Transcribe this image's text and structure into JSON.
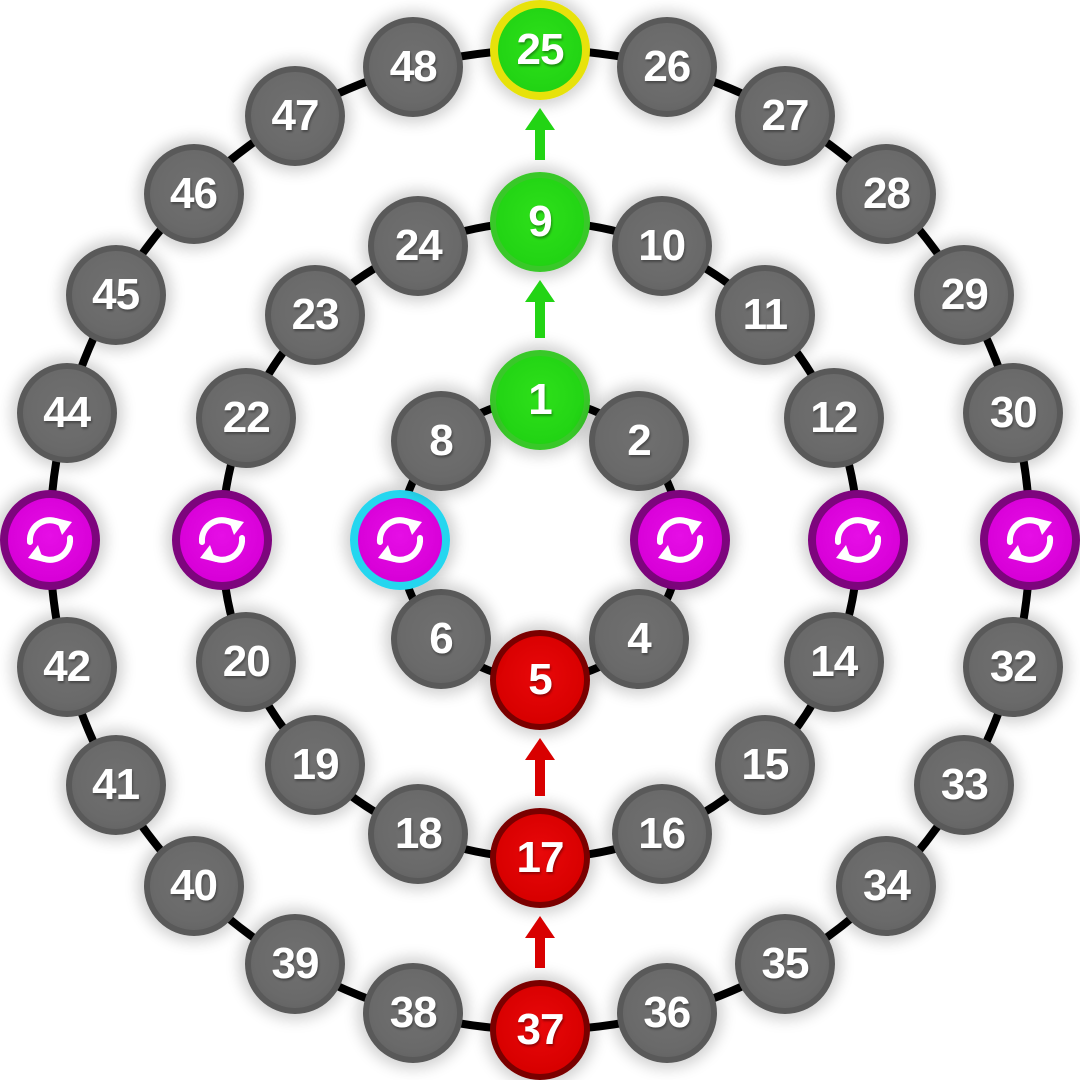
{
  "colors": {
    "gray": "#6a6a6a",
    "green": "#22d414",
    "red": "#d80000",
    "purple": "#d800d8",
    "highlight_yellow": "#e7e20b",
    "highlight_cyan": "#25d6ef",
    "line": "#000000"
  },
  "rings": {
    "inner": [
      {
        "id": "n1",
        "label": "1",
        "color": "green"
      },
      {
        "id": "n2",
        "label": "2",
        "color": "gray"
      },
      {
        "id": "n3",
        "label": "",
        "color": "purple",
        "icon": "refresh-icon"
      },
      {
        "id": "n4",
        "label": "4",
        "color": "gray"
      },
      {
        "id": "n5",
        "label": "5",
        "color": "red"
      },
      {
        "id": "n6",
        "label": "6",
        "color": "gray"
      },
      {
        "id": "n7",
        "label": "",
        "color": "purple",
        "icon": "refresh-icon",
        "highlight": "cyan"
      },
      {
        "id": "n8",
        "label": "8",
        "color": "gray"
      }
    ],
    "middle": [
      {
        "id": "n9",
        "label": "9",
        "color": "green"
      },
      {
        "id": "n10",
        "label": "10",
        "color": "gray"
      },
      {
        "id": "n11",
        "label": "11",
        "color": "gray"
      },
      {
        "id": "n12",
        "label": "12",
        "color": "gray"
      },
      {
        "id": "n13",
        "label": "",
        "color": "purple",
        "icon": "refresh-icon"
      },
      {
        "id": "n14",
        "label": "14",
        "color": "gray"
      },
      {
        "id": "n15",
        "label": "15",
        "color": "gray"
      },
      {
        "id": "n16",
        "label": "16",
        "color": "gray"
      },
      {
        "id": "n17",
        "label": "17",
        "color": "red"
      },
      {
        "id": "n18",
        "label": "18",
        "color": "gray"
      },
      {
        "id": "n19",
        "label": "19",
        "color": "gray"
      },
      {
        "id": "n20",
        "label": "20",
        "color": "gray"
      },
      {
        "id": "n21",
        "label": "",
        "color": "purple",
        "icon": "refresh-icon"
      },
      {
        "id": "n22",
        "label": "22",
        "color": "gray"
      },
      {
        "id": "n23",
        "label": "23",
        "color": "gray"
      },
      {
        "id": "n24",
        "label": "24",
        "color": "gray"
      }
    ],
    "outer": [
      {
        "id": "n25",
        "label": "25",
        "color": "green",
        "highlight": "yellow"
      },
      {
        "id": "n26",
        "label": "26",
        "color": "gray"
      },
      {
        "id": "n27",
        "label": "27",
        "color": "gray"
      },
      {
        "id": "n28",
        "label": "28",
        "color": "gray"
      },
      {
        "id": "n29",
        "label": "29",
        "color": "gray"
      },
      {
        "id": "n30",
        "label": "30",
        "color": "gray"
      },
      {
        "id": "n31",
        "label": "",
        "color": "purple",
        "icon": "refresh-icon"
      },
      {
        "id": "n32",
        "label": "32",
        "color": "gray"
      },
      {
        "id": "n33",
        "label": "33",
        "color": "gray"
      },
      {
        "id": "n34",
        "label": "34",
        "color": "gray"
      },
      {
        "id": "n35",
        "label": "35",
        "color": "gray"
      },
      {
        "id": "n36",
        "label": "36",
        "color": "gray"
      },
      {
        "id": "n37",
        "label": "37",
        "color": "red"
      },
      {
        "id": "n38",
        "label": "38",
        "color": "gray"
      },
      {
        "id": "n39",
        "label": "39",
        "color": "gray"
      },
      {
        "id": "n40",
        "label": "40",
        "color": "gray"
      },
      {
        "id": "n41",
        "label": "41",
        "color": "gray"
      },
      {
        "id": "n42",
        "label": "42",
        "color": "gray"
      },
      {
        "id": "n43",
        "label": "",
        "color": "purple",
        "icon": "refresh-icon"
      },
      {
        "id": "n44",
        "label": "44",
        "color": "gray"
      },
      {
        "id": "n45",
        "label": "45",
        "color": "gray"
      },
      {
        "id": "n46",
        "label": "46",
        "color": "gray"
      },
      {
        "id": "n47",
        "label": "47",
        "color": "gray"
      },
      {
        "id": "n48",
        "label": "48",
        "color": "gray"
      }
    ]
  },
  "arrows": [
    {
      "name": "arrow-up-green",
      "from": "n1",
      "to": "n9",
      "color": "green"
    },
    {
      "name": "arrow-up-green",
      "from": "n9",
      "to": "n25",
      "color": "green"
    },
    {
      "name": "arrow-up-red",
      "from": "n17",
      "to": "n5",
      "color": "red"
    },
    {
      "name": "arrow-up-red",
      "from": "n37",
      "to": "n17",
      "color": "red"
    }
  ]
}
